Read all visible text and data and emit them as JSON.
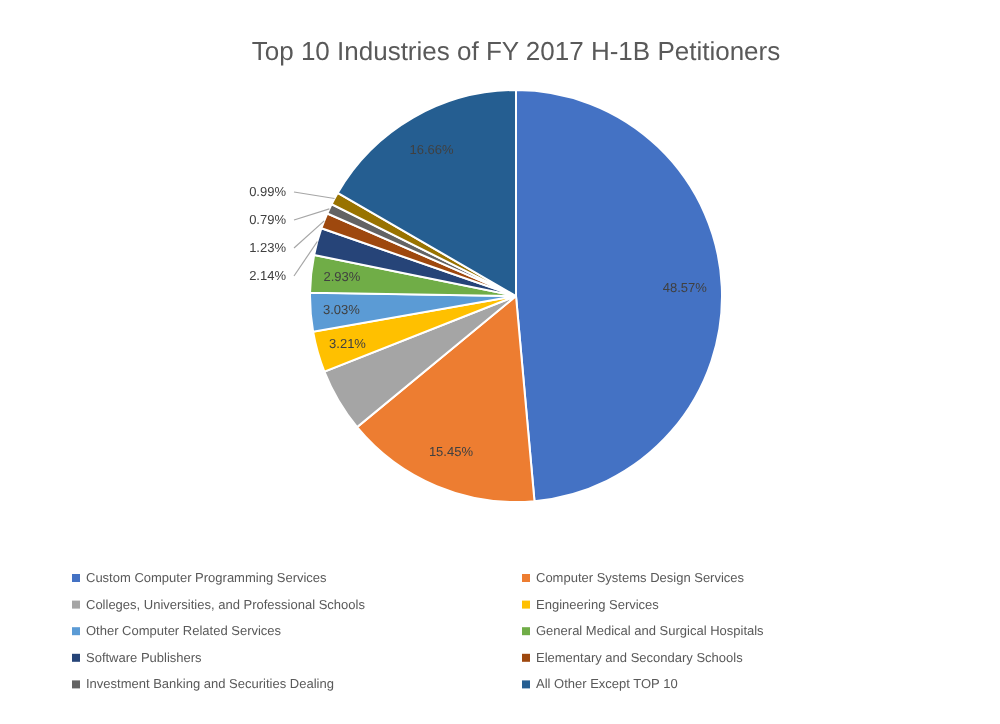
{
  "chart_data": {
    "type": "pie",
    "title": "Top 10 Industries of FY 2017 H-1B Petitioners",
    "categories": [
      "Custom Computer Programming Services",
      "Computer Systems Design Services",
      "Colleges, Universities, and Professional Schools",
      "Engineering Services",
      "Other Computer Related Services",
      "General Medical and Surgical Hospitals",
      "Software Publishers",
      "Elementary and Secondary Schools",
      "Investment Banking and Securities Dealing",
      null,
      "All Other Except TOP 10"
    ],
    "values": [
      48.57,
      15.45,
      5.0,
      3.21,
      3.03,
      2.93,
      2.14,
      1.23,
      0.79,
      0.99,
      16.66
    ],
    "colors": [
      "#4472c4",
      "#ed7d31",
      "#a5a5a5",
      "#ffc000",
      "#5b9bd5",
      "#70ad47",
      "#264478",
      "#9e480e",
      "#636363",
      "#997300",
      "#255e91"
    ],
    "value_labels": [
      "48.57%",
      "15.45%",
      null,
      "3.21%",
      "3.03%",
      "2.93%",
      "2.14%",
      "1.23%",
      "0.79%",
      "0.99%",
      "16.66%"
    ],
    "legend": "bottom"
  }
}
